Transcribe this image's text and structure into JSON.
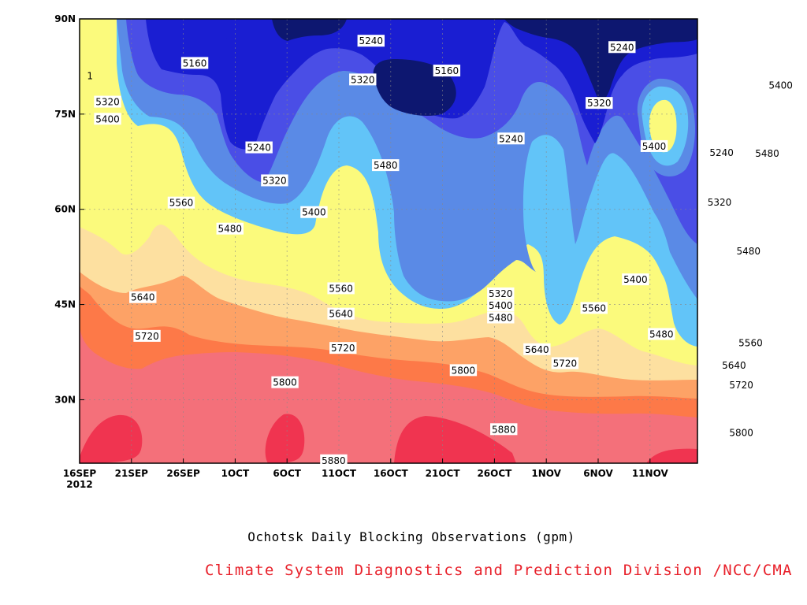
{
  "chart_data": {
    "type": "heatmap",
    "subtype": "filled-contour",
    "title": "Ochotsk Daily Blocking Observations (gpm)",
    "credit": "Climate System Diagnostics and Prediction Division /NCC/CMA",
    "x_ticks": [
      "16SEP",
      "21SEP",
      "26SEP",
      "1OCT",
      "6OCT",
      "11OCT",
      "16OCT",
      "21OCT",
      "26OCT",
      "1NOV",
      "6NOV",
      "11NOV"
    ],
    "x_year_label": "2012",
    "y_ticks": [
      "30N",
      "45N",
      "60N",
      "75N",
      "90N"
    ],
    "ylim_deg": [
      20,
      90
    ],
    "grid": true,
    "contour_levels": [
      5160,
      5240,
      5320,
      5400,
      5480,
      5560,
      5640,
      5720,
      5800,
      5880
    ],
    "band_colors": [
      "#0d1770",
      "#1a1ed2",
      "#4a4ee6",
      "#5a8ae6",
      "#62c4f8",
      "#fbfa7c",
      "#fde0a0",
      "#fda266",
      "#fd7948",
      "#f4707a",
      "#f03450"
    ],
    "contour_labels": [
      {
        "text": "5160",
        "lon_day": 11.1,
        "lat": 83.0
      },
      {
        "text": "5240",
        "lon_day": 28.1,
        "lat": 86.5
      },
      {
        "text": "5320",
        "lon_day": 27.3,
        "lat": 80.4
      },
      {
        "text": "5160",
        "lon_day": 35.4,
        "lat": 81.8
      },
      {
        "text": "5240",
        "lon_day": 52.3,
        "lat": 85.5
      },
      {
        "text": "5400",
        "lon_day": 67.6,
        "lat": 79.5
      },
      {
        "text": "5320",
        "lon_day": 2.7,
        "lat": 76.9
      },
      {
        "text": "5400",
        "lon_day": 2.7,
        "lat": 74.2
      },
      {
        "text": "5320",
        "lon_day": 50.1,
        "lat": 76.7
      },
      {
        "text": "5240",
        "lon_day": 41.6,
        "lat": 71.1
      },
      {
        "text": "5240",
        "lon_day": 17.3,
        "lat": 69.7
      },
      {
        "text": "5400",
        "lon_day": 55.4,
        "lat": 69.9
      },
      {
        "text": "5240",
        "lon_day": 61.9,
        "lat": 68.9
      },
      {
        "text": "5480",
        "lon_day": 66.3,
        "lat": 68.8
      },
      {
        "text": "5480",
        "lon_day": 29.5,
        "lat": 66.9
      },
      {
        "text": "5320",
        "lon_day": 18.8,
        "lat": 64.5
      },
      {
        "text": "5560",
        "lon_day": 9.8,
        "lat": 61.0
      },
      {
        "text": "5400",
        "lon_day": 22.6,
        "lat": 59.5
      },
      {
        "text": "5320",
        "lon_day": 61.7,
        "lat": 61.1
      },
      {
        "text": "5480",
        "lon_day": 14.5,
        "lat": 56.9
      },
      {
        "text": "5480",
        "lon_day": 64.5,
        "lat": 53.4
      },
      {
        "text": "5400",
        "lon_day": 53.6,
        "lat": 48.9
      },
      {
        "text": "5320",
        "lon_day": 40.6,
        "lat": 46.7
      },
      {
        "text": "5560",
        "lon_day": 25.2,
        "lat": 47.5
      },
      {
        "text": "5640",
        "lon_day": 6.1,
        "lat": 46.1
      },
      {
        "text": "5400",
        "lon_day": 40.6,
        "lat": 44.8
      },
      {
        "text": "5560",
        "lon_day": 49.6,
        "lat": 44.4
      },
      {
        "text": "5640",
        "lon_day": 25.2,
        "lat": 43.5
      },
      {
        "text": "5480",
        "lon_day": 40.6,
        "lat": 42.9
      },
      {
        "text": "5480",
        "lon_day": 56.1,
        "lat": 40.3
      },
      {
        "text": "5720",
        "lon_day": 6.5,
        "lat": 40.0
      },
      {
        "text": "5560",
        "lon_day": 64.7,
        "lat": 38.9
      },
      {
        "text": "5720",
        "lon_day": 25.4,
        "lat": 38.1
      },
      {
        "text": "5640",
        "lon_day": 44.1,
        "lat": 37.9
      },
      {
        "text": "5720",
        "lon_day": 46.8,
        "lat": 35.7
      },
      {
        "text": "5640",
        "lon_day": 63.1,
        "lat": 35.4
      },
      {
        "text": "5800",
        "lon_day": 37.0,
        "lat": 34.6
      },
      {
        "text": "5800",
        "lon_day": 19.8,
        "lat": 32.7
      },
      {
        "text": "5720",
        "lon_day": 63.8,
        "lat": 32.3
      },
      {
        "text": "5880",
        "lon_day": 40.9,
        "lat": 25.3
      },
      {
        "text": "5800",
        "lon_day": 63.8,
        "lat": 24.8
      },
      {
        "text": "5880",
        "lon_day": 24.5,
        "lat": 20.4
      },
      {
        "text": "1",
        "lon_day": 1.0,
        "lat": 81.0
      }
    ]
  }
}
